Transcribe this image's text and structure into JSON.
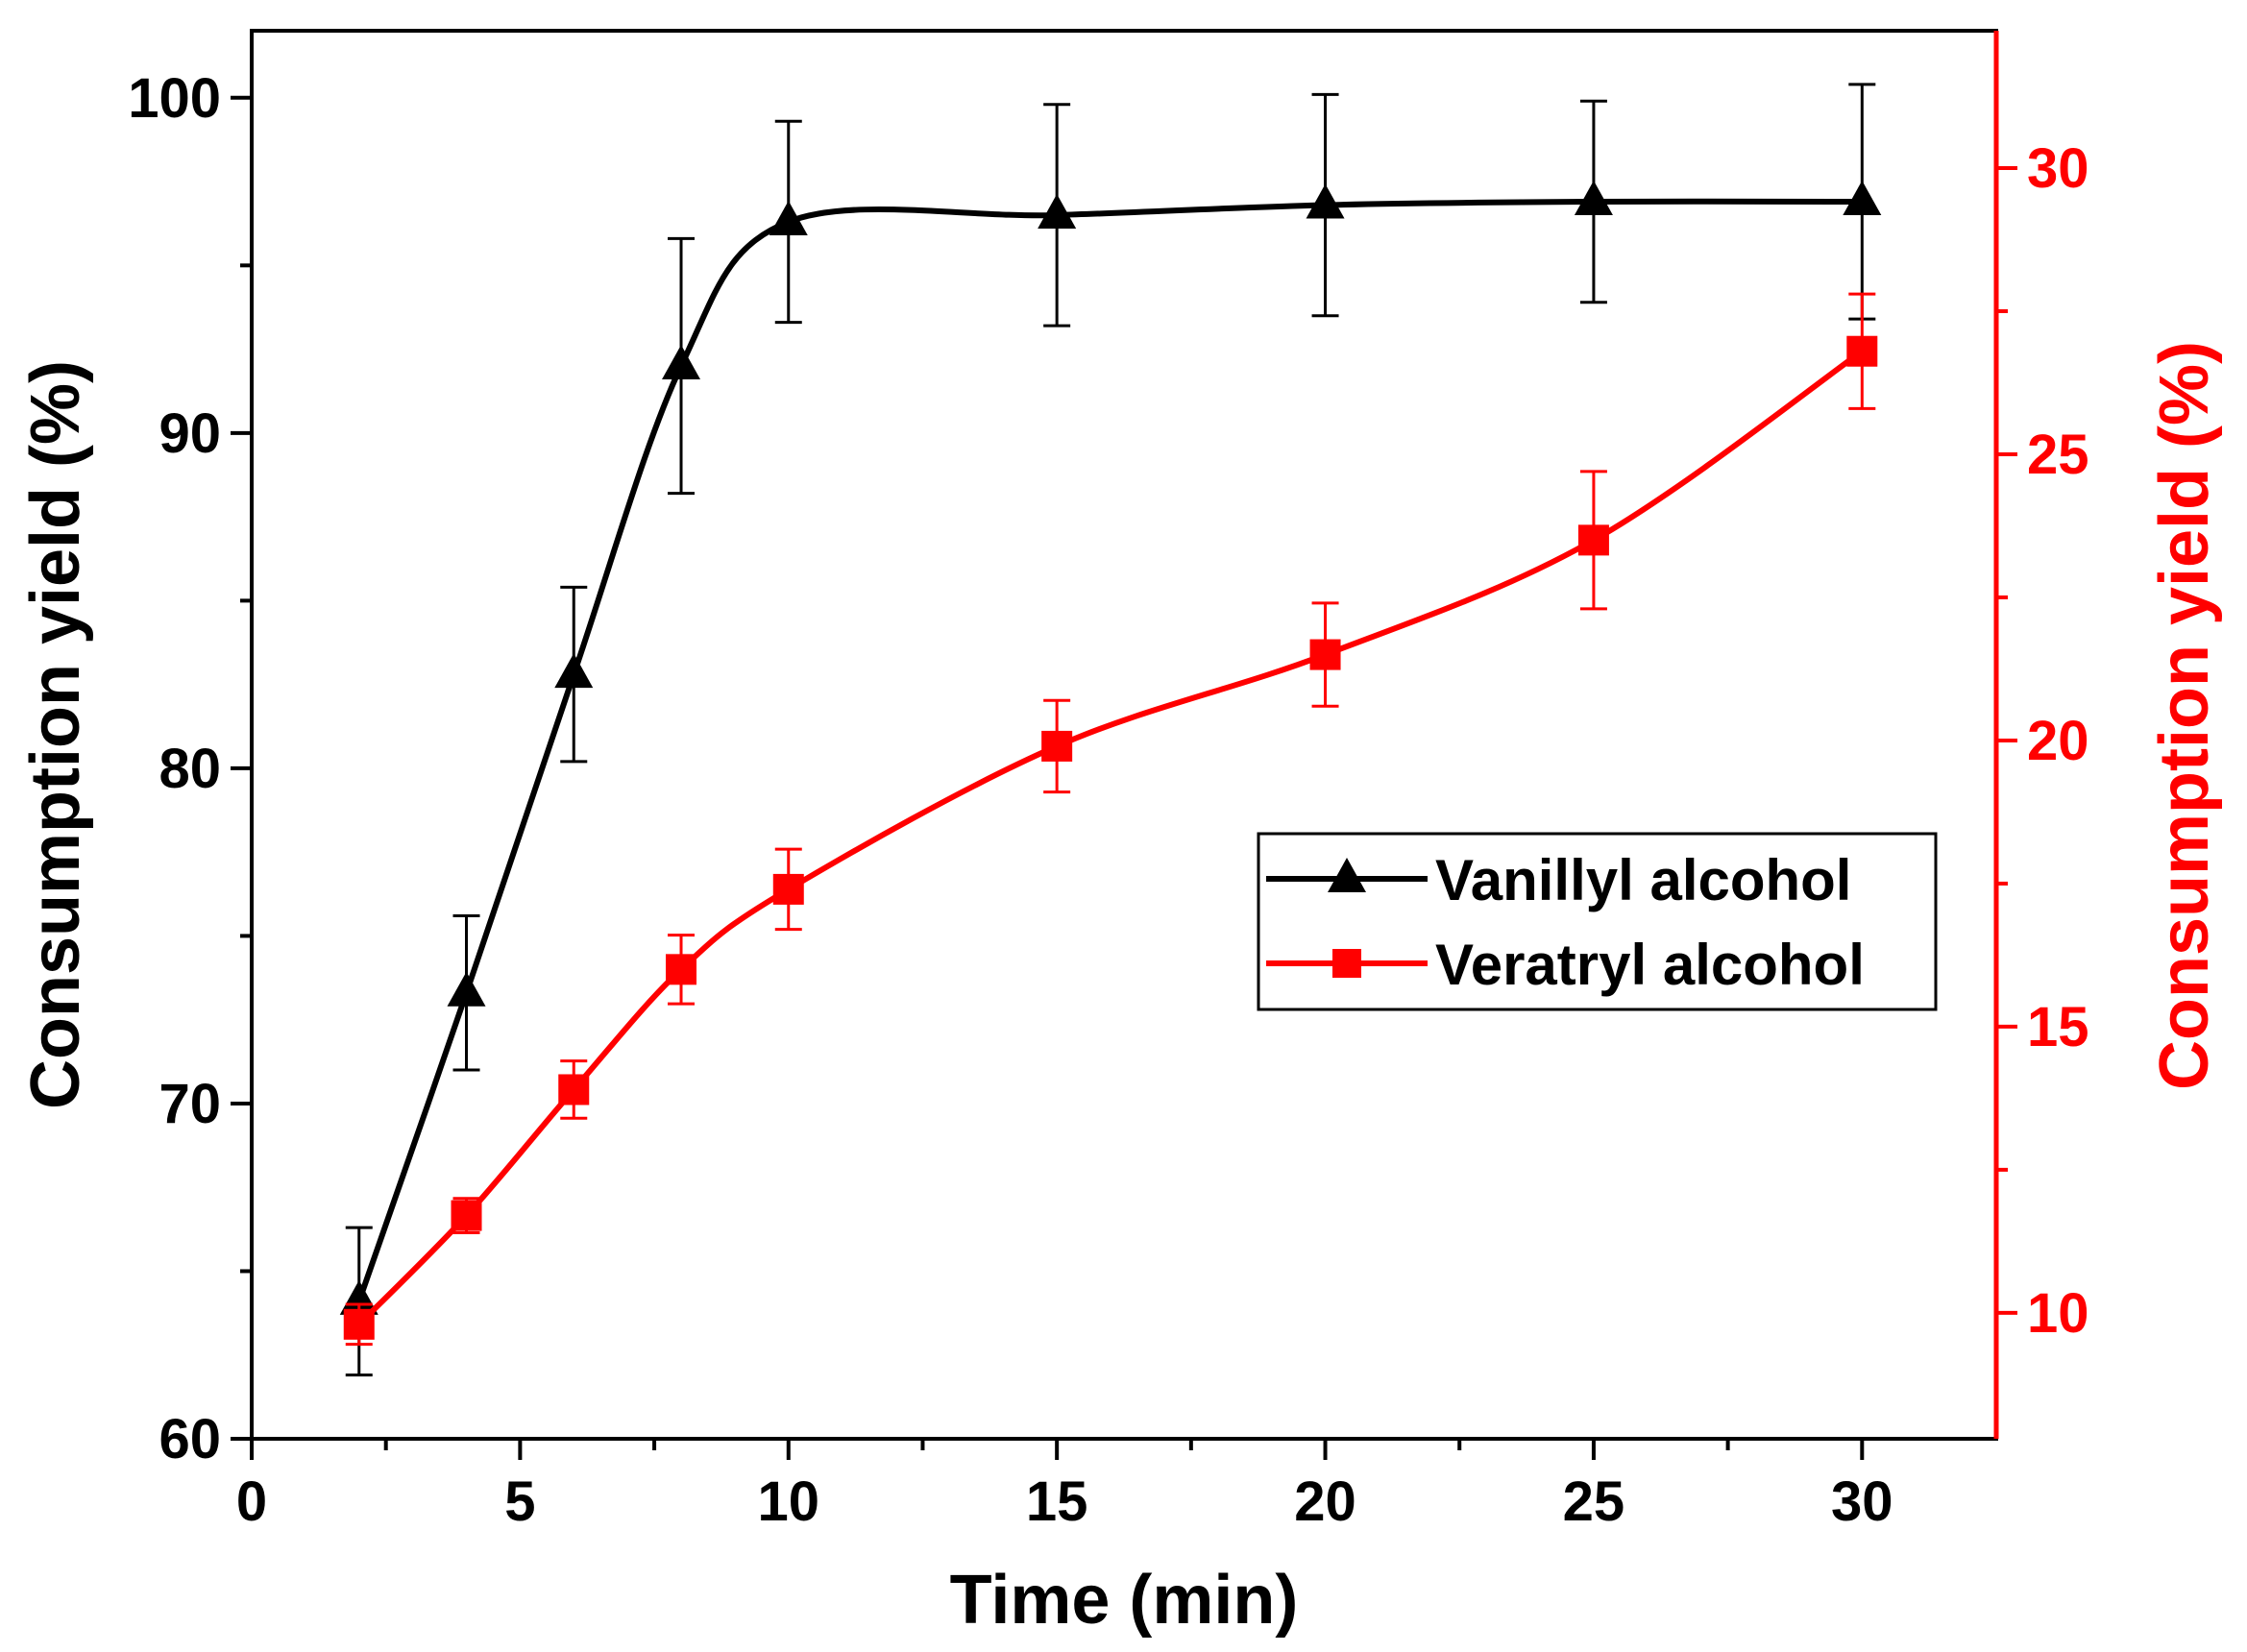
{
  "chart_data": {
    "type": "line",
    "xlabel": "Time (min)",
    "ylabel": "Consumption yield (%)",
    "ylabel_right": "Consumption yield (%)",
    "xlim": [
      0,
      32.5
    ],
    "ylim": [
      60,
      102
    ],
    "ylim_right": [
      7.8,
      32.4
    ],
    "xticks": [
      0,
      5,
      10,
      15,
      20,
      25,
      30
    ],
    "yticks": [
      60,
      70,
      80,
      90,
      100
    ],
    "yticks_right": [
      10,
      15,
      20,
      25,
      30
    ],
    "legend_position": "center-right",
    "colors": {
      "left_axis": "#000000",
      "right_axis": "#ff0000"
    },
    "series": [
      {
        "name": "Vanillyl alcohol",
        "axis": "left",
        "color": "#000000",
        "marker": "triangle",
        "x": [
          2,
          4,
          6,
          8,
          10,
          15,
          20,
          25,
          30
        ],
        "values": [
          64.1,
          73.3,
          82.8,
          92.0,
          96.3,
          96.5,
          96.8,
          96.9,
          96.9
        ],
        "errors": [
          2.2,
          2.3,
          2.6,
          3.8,
          3.0,
          3.3,
          3.3,
          3.0,
          3.5
        ]
      },
      {
        "name": "Veratryl alcohol",
        "axis": "right",
        "color": "#ff0000",
        "marker": "square",
        "x": [
          2,
          4,
          6,
          8,
          10,
          15,
          20,
          25,
          30
        ],
        "values": [
          9.8,
          11.7,
          13.9,
          16.0,
          17.4,
          19.9,
          21.5,
          23.5,
          26.8
        ],
        "errors": [
          0.35,
          0.3,
          0.5,
          0.6,
          0.7,
          0.8,
          0.9,
          1.2,
          1.0
        ]
      }
    ]
  }
}
